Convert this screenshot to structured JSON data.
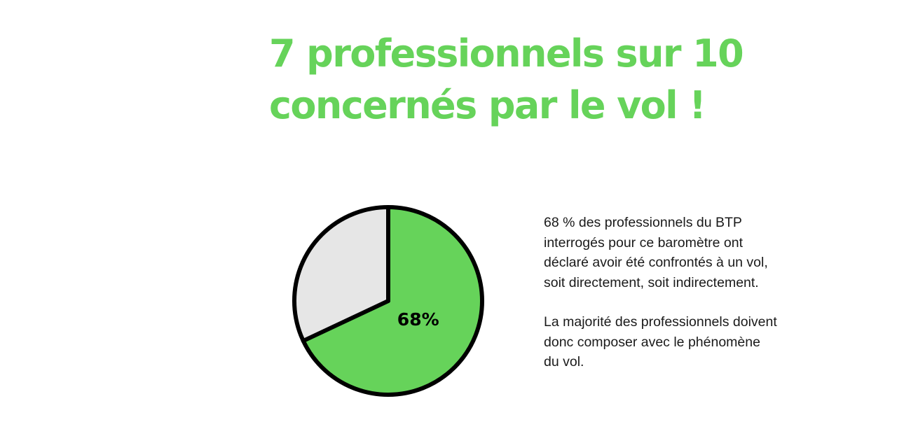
{
  "headline": {
    "line1": "7 professionnels sur 10",
    "line2": "concernés par le vol !"
  },
  "description": {
    "paragraph1": [
      "68 % des professionnels du BTP",
      "interrogés pour ce baromètre ont",
      "déclaré avoir été confrontés à un vol,",
      "soit directement, soit indirectement."
    ],
    "paragraph2": [
      "La majorité des professionnels doivent",
      "donc composer avec le phénomène",
      "du vol."
    ]
  },
  "colors": {
    "accent": "#66d35a",
    "remainder": "#e6e6e6",
    "outline": "#000000"
  },
  "chart_data": {
    "type": "pie",
    "slices": [
      {
        "value": 68,
        "color": "#66d35a",
        "label": "68%"
      },
      {
        "value": 32,
        "color": "#e6e6e6",
        "label": ""
      }
    ],
    "start_angle_deg": 0,
    "direction": "clockwise"
  }
}
